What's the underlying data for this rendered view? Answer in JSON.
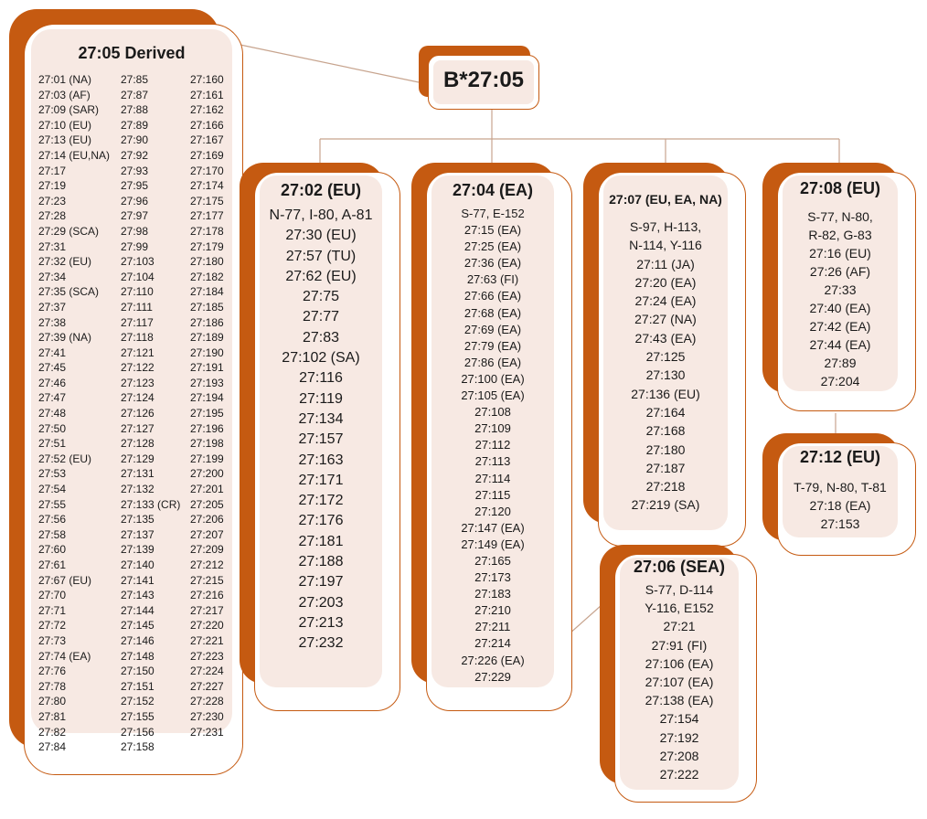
{
  "colors": {
    "accent": "#c55a11",
    "panel": "#f7e9e3",
    "border": "#c55a11",
    "text": "#1a1a1a"
  },
  "root": {
    "title": "B*27:05"
  },
  "derived": {
    "title": "27:05 Derived",
    "col1": [
      "27:01 (NA)",
      "27:03 (AF)",
      "27:09 (SAR)",
      "27:10 (EU)",
      "27:13 (EU)",
      "27:14 (EU,NA)",
      "27:17",
      "27:19",
      "27:23",
      "27:28",
      "27:29 (SCA)",
      "27:31",
      "27:32 (EU)",
      "27:34",
      "27:35 (SCA)",
      "27:37",
      "27:38",
      "27:39 (NA)",
      "27:41",
      "27:45",
      "27:46",
      "27:47",
      "27:48",
      "27:50",
      "27:51",
      "27:52 (EU)",
      "27:53",
      "27:54",
      "27:55",
      "27:56",
      "27:58",
      "27:60",
      "27:61",
      "27:67 (EU)",
      "27:70",
      "27:71",
      "27:72",
      "27:73",
      "27:74 (EA)",
      "27:76",
      "27:78",
      "27:80",
      "27:81",
      "27:82",
      "27:84"
    ],
    "col2": [
      "27:85",
      "27:87",
      "27:88",
      "27:89",
      "27:90",
      "27:92",
      "27:93",
      "27:95",
      "27:96",
      "27:97",
      "27:98",
      "27:99",
      "27:103",
      "27:104",
      "27:110",
      "27:111",
      "27:117",
      "27:118",
      "27:121",
      "27:122",
      "27:123",
      "27:124",
      "27:126",
      "27:127",
      "27:128",
      "27:129",
      "27:131",
      "27:132",
      "27:133 (CR)",
      "27:135",
      "27:137",
      "27:139",
      "27:140",
      "27:141",
      "27:143",
      "27:144",
      "27:145",
      "27:146",
      "27:148",
      "27:150",
      "27:151",
      "27:152",
      "27:155",
      "27:156",
      "27:158"
    ],
    "col3": [
      "27:160",
      "27:161",
      "27:162",
      "27:166",
      "27:167",
      "27:169",
      "27:170",
      "27:174",
      "27:175",
      "27:177",
      "27:178",
      "27:179",
      "27:180",
      "27:182",
      "27:184",
      "27:185",
      "27:186",
      "27:189",
      "27:190",
      "27:191",
      "27:193",
      "27:194",
      "27:195",
      "27:196",
      "27:198",
      "27:199",
      "27:200",
      "27:201",
      "27:205",
      "27:206",
      "27:207",
      "27:209",
      "27:212",
      "27:215",
      "27:216",
      "27:217",
      "27:220",
      "27:221",
      "27:223",
      "27:224",
      "27:227",
      "27:228",
      "27:230",
      "27:231"
    ]
  },
  "groups": {
    "g02": {
      "title": "27:02 (EU)",
      "lines": [
        "N-77, I-80, A-81",
        "27:30 (EU)",
        "27:57 (TU)",
        "27:62 (EU)",
        "27:75",
        "27:77",
        "27:83",
        "27:102 (SA)",
        "27:116",
        "27:119",
        "27:134",
        "27:157",
        "27:163",
        "27:171",
        "27:172",
        "27:176",
        "27:181",
        "27:188",
        "27:197",
        "27:203",
        "27:213",
        "27:232"
      ]
    },
    "g04": {
      "title": "27:04 (EA)",
      "lines": [
        "S-77, E-152",
        "27:15 (EA)",
        "27:25 (EA)",
        "27:36 (EA)",
        "27:63 (FI)",
        "27:66 (EA)",
        "27:68 (EA)",
        "27:69 (EA)",
        "27:79 (EA)",
        "27:86 (EA)",
        "27:100 (EA)",
        "27:105 (EA)",
        "27:108",
        "27:109",
        "27:112",
        "27:113",
        "27:114",
        "27:115",
        "27:120",
        "27:147 (EA)",
        "27:149 (EA)",
        "27:165",
        "27:173",
        "27:183",
        "27:210",
        "27:211",
        "27:214",
        "27:226 (EA)",
        "27:229"
      ]
    },
    "g07": {
      "title": "27:07 (EU, EA, NA)",
      "lines": [
        "S-97, H-113,",
        "N-114, Y-116",
        "27:11 (JA)",
        "27:20 (EA)",
        "27:24 (EA)",
        "27:27 (NA)",
        "27:43 (EA)",
        "27:125",
        "27:130",
        "27:136 (EU)",
        "27:164",
        "27:168",
        "27:180",
        "27:187",
        "27:218",
        "27:219 (SA)"
      ]
    },
    "g08": {
      "title": "27:08 (EU)",
      "lines": [
        "S-77, N-80,",
        "R-82, G-83",
        "27:16 (EU)",
        "27:26 (AF)",
        "27:33",
        "27:40 (EA)",
        "27:42 (EA)",
        "27:44 (EA)",
        "27:89",
        "27:204"
      ]
    },
    "g12": {
      "title": "27:12 (EU)",
      "lines": [
        "T-79, N-80, T-81",
        "27:18 (EA)",
        "27:153"
      ]
    },
    "g06": {
      "title": "27:06 (SEA)",
      "lines": [
        "S-77, D-114",
        "Y-116, E152",
        "27:21",
        "27:91 (FI)",
        "27:106 (EA)",
        "27:107 (EA)",
        "27:138 (EA)",
        "27:154",
        "27:192",
        "27:208",
        "27:222"
      ]
    }
  }
}
